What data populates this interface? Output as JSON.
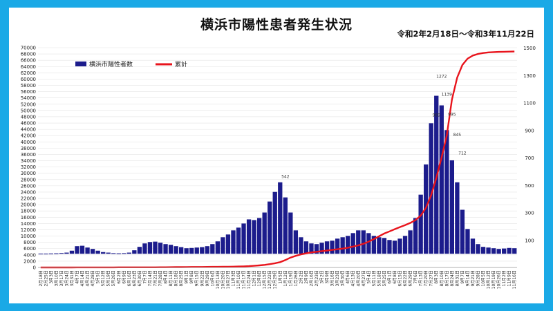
{
  "chart_data": {
    "type": "bar+line",
    "title": "横浜市陽性患者発生状況",
    "subtitle": "令和2年2月18日～令和3年11月22日",
    "y_left": {
      "min": 0,
      "max": 70000,
      "step": 2000
    },
    "y_right": {
      "ticks": [
        1500,
        1300,
        1100,
        900,
        700,
        500,
        300,
        100
      ],
      "min": -100,
      "max": 1500
    },
    "legend": [
      "横浜市陽性者数",
      "累計"
    ],
    "legend_position": "top-left",
    "colors": {
      "bars": "#1c1c8c",
      "line": "#e8141c",
      "frame": "#1aa9e6"
    },
    "x_labels": [
      "2月18日",
      "2月25日",
      "3月3日",
      "3月10日",
      "3月17日",
      "3月24日",
      "3月31日",
      "4月7日",
      "4月14日",
      "4月21日",
      "4月28日",
      "5月5日",
      "5月12日",
      "5月19日",
      "5月26日",
      "6月2日",
      "6月9日",
      "6月16日",
      "6月23日",
      "6月30日",
      "7月7日",
      "7月14日",
      "7月21日",
      "7月28日",
      "8月4日",
      "8月11日",
      "8月18日",
      "8月25日",
      "9月1日",
      "9月8日",
      "9月15日",
      "9月22日",
      "9月29日",
      "10月6日",
      "10月13日",
      "10月20日",
      "10月27日",
      "11月3日",
      "11月10日",
      "11月17日",
      "11月24日",
      "12月1日",
      "12月8日",
      "12月15日",
      "12月22日",
      "12月29日",
      "1月5日",
      "1月12日",
      "1月19日",
      "1月26日",
      "2月2日",
      "2月9日",
      "2月16日",
      "2月23日",
      "3月2日",
      "3月9日",
      "3月16日",
      "3月23日",
      "3月30日",
      "4月6日",
      "4月13日",
      "4月20日",
      "4月27日",
      "5月4日",
      "5月11日",
      "5月18日",
      "5月25日",
      "6月1日",
      "6月8日",
      "6月15日",
      "6月22日",
      "6月29日",
      "7月6日",
      "7月13日",
      "7月20日",
      "7月27日",
      "8月3日",
      "8月10日",
      "8月17日",
      "8月24日",
      "8月31日",
      "9月7日",
      "9月14日",
      "9月21日",
      "9月28日",
      "10月5日",
      "10月12日",
      "10月19日",
      "10月26日",
      "11月2日",
      "11月9日",
      "11月16日"
    ],
    "daily_peaks": [
      {
        "week": 47,
        "value": 542
      },
      {
        "week": 76,
        "value": 989
      },
      {
        "week": 77,
        "value": 1272
      },
      {
        "week": 78,
        "value": 1139
      },
      {
        "week": 79,
        "value": 995
      },
      {
        "week": 80,
        "value": 845
      },
      {
        "week": 81,
        "value": 712
      }
    ],
    "cumulative": [
      0,
      0,
      1,
      2,
      4,
      6,
      10,
      14,
      18,
      22,
      25,
      28,
      30,
      32,
      33,
      34,
      35,
      36,
      38,
      40,
      42,
      46,
      52,
      60,
      72,
      86,
      100,
      116,
      132,
      144,
      154,
      164,
      176,
      188,
      200,
      216,
      236,
      262,
      298,
      350,
      420,
      520,
      650,
      820,
      1050,
      1350,
      1700,
      2350,
      3150,
      3700,
      4150,
      4500,
      4800,
      5000,
      5200,
      5400,
      5600,
      5800,
      6000,
      6300,
      6650,
      7050,
      7550,
      8200,
      9050,
      9950,
      10800,
      11500,
      12200,
      12850,
      13500,
      14200,
      15100,
      16500,
      19000,
      23000,
      28500,
      35000,
      42000,
      53500,
      60500,
      64500,
      66500,
      67500,
      68000,
      68300,
      68500,
      68600,
      68650,
      68700,
      68750,
      68800
    ],
    "weekly_bars": [
      1,
      1,
      2,
      3,
      5,
      8,
      22,
      55,
      58,
      45,
      35,
      22,
      12,
      8,
      4,
      3,
      4,
      8,
      25,
      50,
      75,
      85,
      88,
      80,
      70,
      65,
      55,
      48,
      40,
      42,
      45,
      48,
      55,
      70,
      90,
      120,
      140,
      170,
      190,
      220,
      250,
      245,
      260,
      300,
      380,
      450,
      520,
      410,
      300,
      170,
      120,
      90,
      75,
      70,
      80,
      90,
      95,
      110,
      120,
      130,
      150,
      170,
      170,
      150,
      130,
      120,
      115,
      100,
      95,
      110,
      130,
      170,
      260,
      430,
      650,
      950,
      1150,
      1080,
      900,
      680,
      520,
      320,
      180,
      110,
      70,
      50,
      45,
      40,
      35,
      38,
      42,
      40
    ]
  }
}
